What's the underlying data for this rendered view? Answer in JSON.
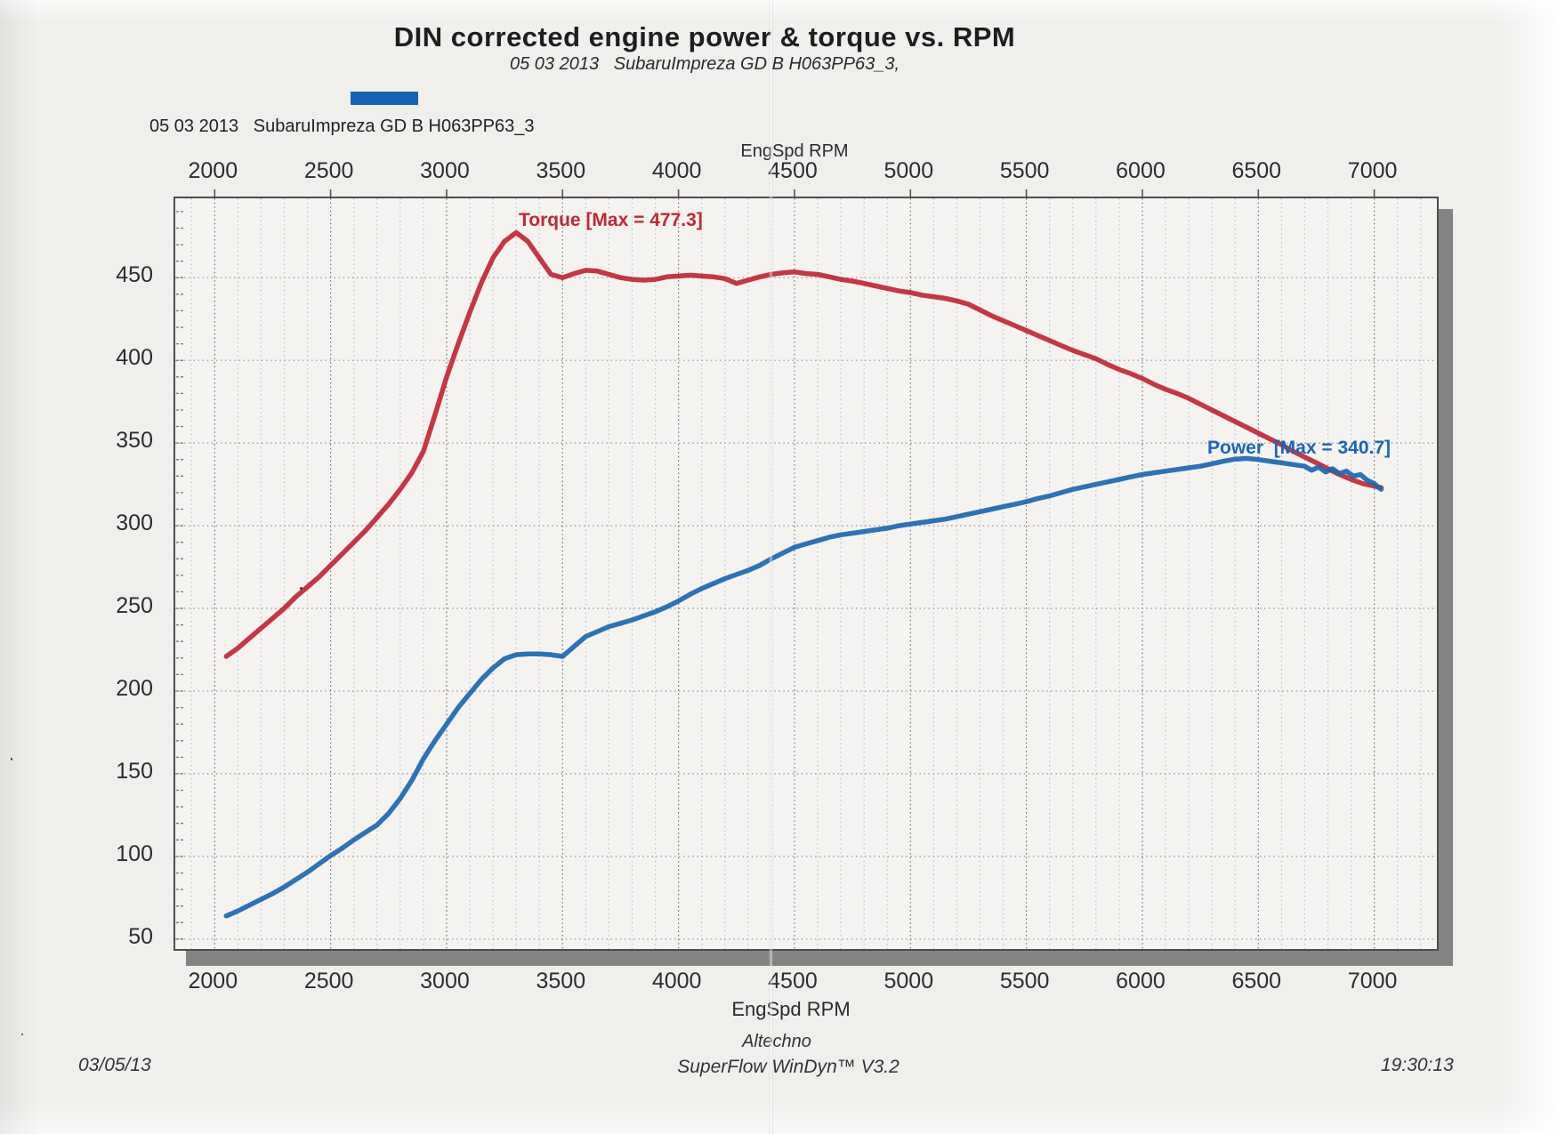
{
  "header": {
    "title": "DIN corrected engine power & torque vs. RPM",
    "subtitle": "05 03 2013   SubaruImpreza GD B H063PP63_3,"
  },
  "legend": {
    "swatch_color": "#1464b4",
    "label": "05 03 2013   SubaruImpreza GD B H063PP63_3"
  },
  "axis": {
    "top_title": "EngSpd RPM",
    "bottom_title": "EngSpd RPM"
  },
  "annotations": {
    "torque_max_label": "Torque [Max = 477.3]",
    "power_max_label": "Power  [Max = 340.7]"
  },
  "footer": {
    "date": "03/05/13",
    "company": "Altechno",
    "software": "SuperFlow WinDyn™ V3.2",
    "time": "19:30:13"
  },
  "chart_data": {
    "type": "line",
    "title": "DIN corrected engine power & torque vs. RPM",
    "subtitle": "05 03 2013 SubaruImpreza GD B H063PP63_3",
    "xlabel": "EngSpd RPM",
    "ylabel": "",
    "grid": true,
    "x_range": [
      1830,
      7270
    ],
    "y_range": [
      44,
      498
    ],
    "x_major_ticks": [
      2000,
      2500,
      3000,
      3500,
      4000,
      4500,
      5000,
      5500,
      6000,
      6500,
      7000
    ],
    "x_minor_step": 100,
    "y_major_ticks": [
      450,
      400,
      350,
      300,
      250,
      200,
      150,
      100,
      50
    ],
    "y_minor_step": 10,
    "series": [
      {
        "name": "Torque",
        "max": 477.3,
        "color": "#c22737",
        "points": [
          [
            2050,
            221
          ],
          [
            2100,
            226
          ],
          [
            2150,
            232
          ],
          [
            2200,
            238
          ],
          [
            2250,
            244
          ],
          [
            2300,
            250
          ],
          [
            2350,
            257
          ],
          [
            2400,
            263
          ],
          [
            2450,
            269
          ],
          [
            2500,
            276
          ],
          [
            2550,
            283
          ],
          [
            2600,
            290
          ],
          [
            2650,
            297
          ],
          [
            2700,
            305
          ],
          [
            2750,
            313
          ],
          [
            2800,
            322
          ],
          [
            2850,
            332
          ],
          [
            2900,
            345
          ],
          [
            2950,
            367
          ],
          [
            3000,
            390
          ],
          [
            3050,
            410
          ],
          [
            3100,
            429
          ],
          [
            3150,
            447
          ],
          [
            3200,
            462
          ],
          [
            3250,
            472
          ],
          [
            3300,
            477.3
          ],
          [
            3350,
            472
          ],
          [
            3400,
            462
          ],
          [
            3450,
            452
          ],
          [
            3500,
            450
          ],
          [
            3550,
            452.5
          ],
          [
            3600,
            454.5
          ],
          [
            3650,
            454
          ],
          [
            3700,
            452
          ],
          [
            3750,
            450
          ],
          [
            3800,
            449
          ],
          [
            3850,
            448.5
          ],
          [
            3900,
            449
          ],
          [
            3950,
            450.5
          ],
          [
            4000,
            451
          ],
          [
            4050,
            451.5
          ],
          [
            4100,
            451
          ],
          [
            4150,
            450.5
          ],
          [
            4200,
            449.5
          ],
          [
            4250,
            446.5
          ],
          [
            4300,
            448.5
          ],
          [
            4350,
            450.5
          ],
          [
            4400,
            452
          ],
          [
            4450,
            453
          ],
          [
            4500,
            453.5
          ],
          [
            4550,
            452.5
          ],
          [
            4600,
            452
          ],
          [
            4650,
            450.5
          ],
          [
            4700,
            449
          ],
          [
            4750,
            448
          ],
          [
            4800,
            446.5
          ],
          [
            4850,
            445
          ],
          [
            4900,
            443.5
          ],
          [
            4950,
            442
          ],
          [
            5000,
            441
          ],
          [
            5050,
            439.5
          ],
          [
            5100,
            438.5
          ],
          [
            5150,
            437.5
          ],
          [
            5200,
            436
          ],
          [
            5250,
            434
          ],
          [
            5300,
            430.5
          ],
          [
            5350,
            427
          ],
          [
            5400,
            424
          ],
          [
            5450,
            421
          ],
          [
            5500,
            418
          ],
          [
            5550,
            415
          ],
          [
            5600,
            412
          ],
          [
            5650,
            409
          ],
          [
            5700,
            406
          ],
          [
            5750,
            403.5
          ],
          [
            5800,
            401
          ],
          [
            5850,
            397.5
          ],
          [
            5900,
            394.5
          ],
          [
            5950,
            392
          ],
          [
            6000,
            389
          ],
          [
            6050,
            385.5
          ],
          [
            6100,
            382.5
          ],
          [
            6150,
            380
          ],
          [
            6200,
            377
          ],
          [
            6250,
            373.5
          ],
          [
            6300,
            370
          ],
          [
            6350,
            366.5
          ],
          [
            6400,
            363
          ],
          [
            6450,
            359.5
          ],
          [
            6500,
            356
          ],
          [
            6550,
            352.5
          ],
          [
            6600,
            349
          ],
          [
            6650,
            345
          ],
          [
            6700,
            341.5
          ],
          [
            6750,
            338
          ],
          [
            6800,
            334.5
          ],
          [
            6850,
            331
          ],
          [
            6900,
            328
          ],
          [
            6950,
            325.5
          ],
          [
            7000,
            324
          ],
          [
            7030,
            323
          ]
        ]
      },
      {
        "name": "Power",
        "max": 340.7,
        "color": "#1b68b2",
        "points": [
          [
            2050,
            64
          ],
          [
            2100,
            67
          ],
          [
            2150,
            70.5
          ],
          [
            2200,
            74
          ],
          [
            2250,
            77.5
          ],
          [
            2300,
            81.5
          ],
          [
            2350,
            86
          ],
          [
            2400,
            90.5
          ],
          [
            2450,
            95.5
          ],
          [
            2500,
            100.5
          ],
          [
            2550,
            105
          ],
          [
            2600,
            110
          ],
          [
            2650,
            114.5
          ],
          [
            2700,
            119
          ],
          [
            2750,
            126
          ],
          [
            2800,
            135
          ],
          [
            2850,
            146
          ],
          [
            2900,
            159
          ],
          [
            2950,
            170
          ],
          [
            3000,
            180
          ],
          [
            3050,
            190
          ],
          [
            3100,
            198.5
          ],
          [
            3150,
            207
          ],
          [
            3200,
            214
          ],
          [
            3250,
            219.5
          ],
          [
            3300,
            222
          ],
          [
            3350,
            222.5
          ],
          [
            3400,
            222.5
          ],
          [
            3450,
            222
          ],
          [
            3500,
            221
          ],
          [
            3550,
            227
          ],
          [
            3600,
            233
          ],
          [
            3650,
            236
          ],
          [
            3700,
            239
          ],
          [
            3750,
            241
          ],
          [
            3800,
            243
          ],
          [
            3850,
            245.5
          ],
          [
            3900,
            248
          ],
          [
            3950,
            251
          ],
          [
            4000,
            254.5
          ],
          [
            4050,
            258.5
          ],
          [
            4100,
            262
          ],
          [
            4150,
            265
          ],
          [
            4200,
            268
          ],
          [
            4250,
            270.5
          ],
          [
            4300,
            273
          ],
          [
            4350,
            276
          ],
          [
            4400,
            280
          ],
          [
            4450,
            283.5
          ],
          [
            4500,
            287
          ],
          [
            4550,
            289
          ],
          [
            4600,
            291
          ],
          [
            4650,
            293
          ],
          [
            4700,
            294.5
          ],
          [
            4750,
            295.5
          ],
          [
            4800,
            296.5
          ],
          [
            4850,
            297.5
          ],
          [
            4900,
            298.5
          ],
          [
            4950,
            300
          ],
          [
            5000,
            301
          ],
          [
            5050,
            302
          ],
          [
            5100,
            303
          ],
          [
            5150,
            304
          ],
          [
            5200,
            305.5
          ],
          [
            5250,
            307
          ],
          [
            5300,
            308.5
          ],
          [
            5350,
            310
          ],
          [
            5400,
            311.5
          ],
          [
            5450,
            313
          ],
          [
            5500,
            314.5
          ],
          [
            5550,
            316.5
          ],
          [
            5600,
            318
          ],
          [
            5650,
            320
          ],
          [
            5700,
            322
          ],
          [
            5750,
            323.5
          ],
          [
            5800,
            325
          ],
          [
            5850,
            326.5
          ],
          [
            5900,
            328
          ],
          [
            5950,
            329.5
          ],
          [
            6000,
            331
          ],
          [
            6050,
            332
          ],
          [
            6100,
            333
          ],
          [
            6150,
            334
          ],
          [
            6200,
            335
          ],
          [
            6250,
            336
          ],
          [
            6300,
            337.5
          ],
          [
            6350,
            339
          ],
          [
            6400,
            340.3
          ],
          [
            6450,
            340.7
          ],
          [
            6500,
            340
          ],
          [
            6550,
            339
          ],
          [
            6600,
            338
          ],
          [
            6650,
            337
          ],
          [
            6700,
            336
          ],
          [
            6730,
            333.5
          ],
          [
            6760,
            335.5
          ],
          [
            6790,
            332.5
          ],
          [
            6820,
            334.5
          ],
          [
            6850,
            331.5
          ],
          [
            6880,
            333
          ],
          [
            6910,
            330
          ],
          [
            6940,
            331
          ],
          [
            6970,
            327.5
          ],
          [
            7000,
            325.5
          ],
          [
            7015,
            323.5
          ],
          [
            7030,
            322
          ]
        ]
      }
    ]
  }
}
